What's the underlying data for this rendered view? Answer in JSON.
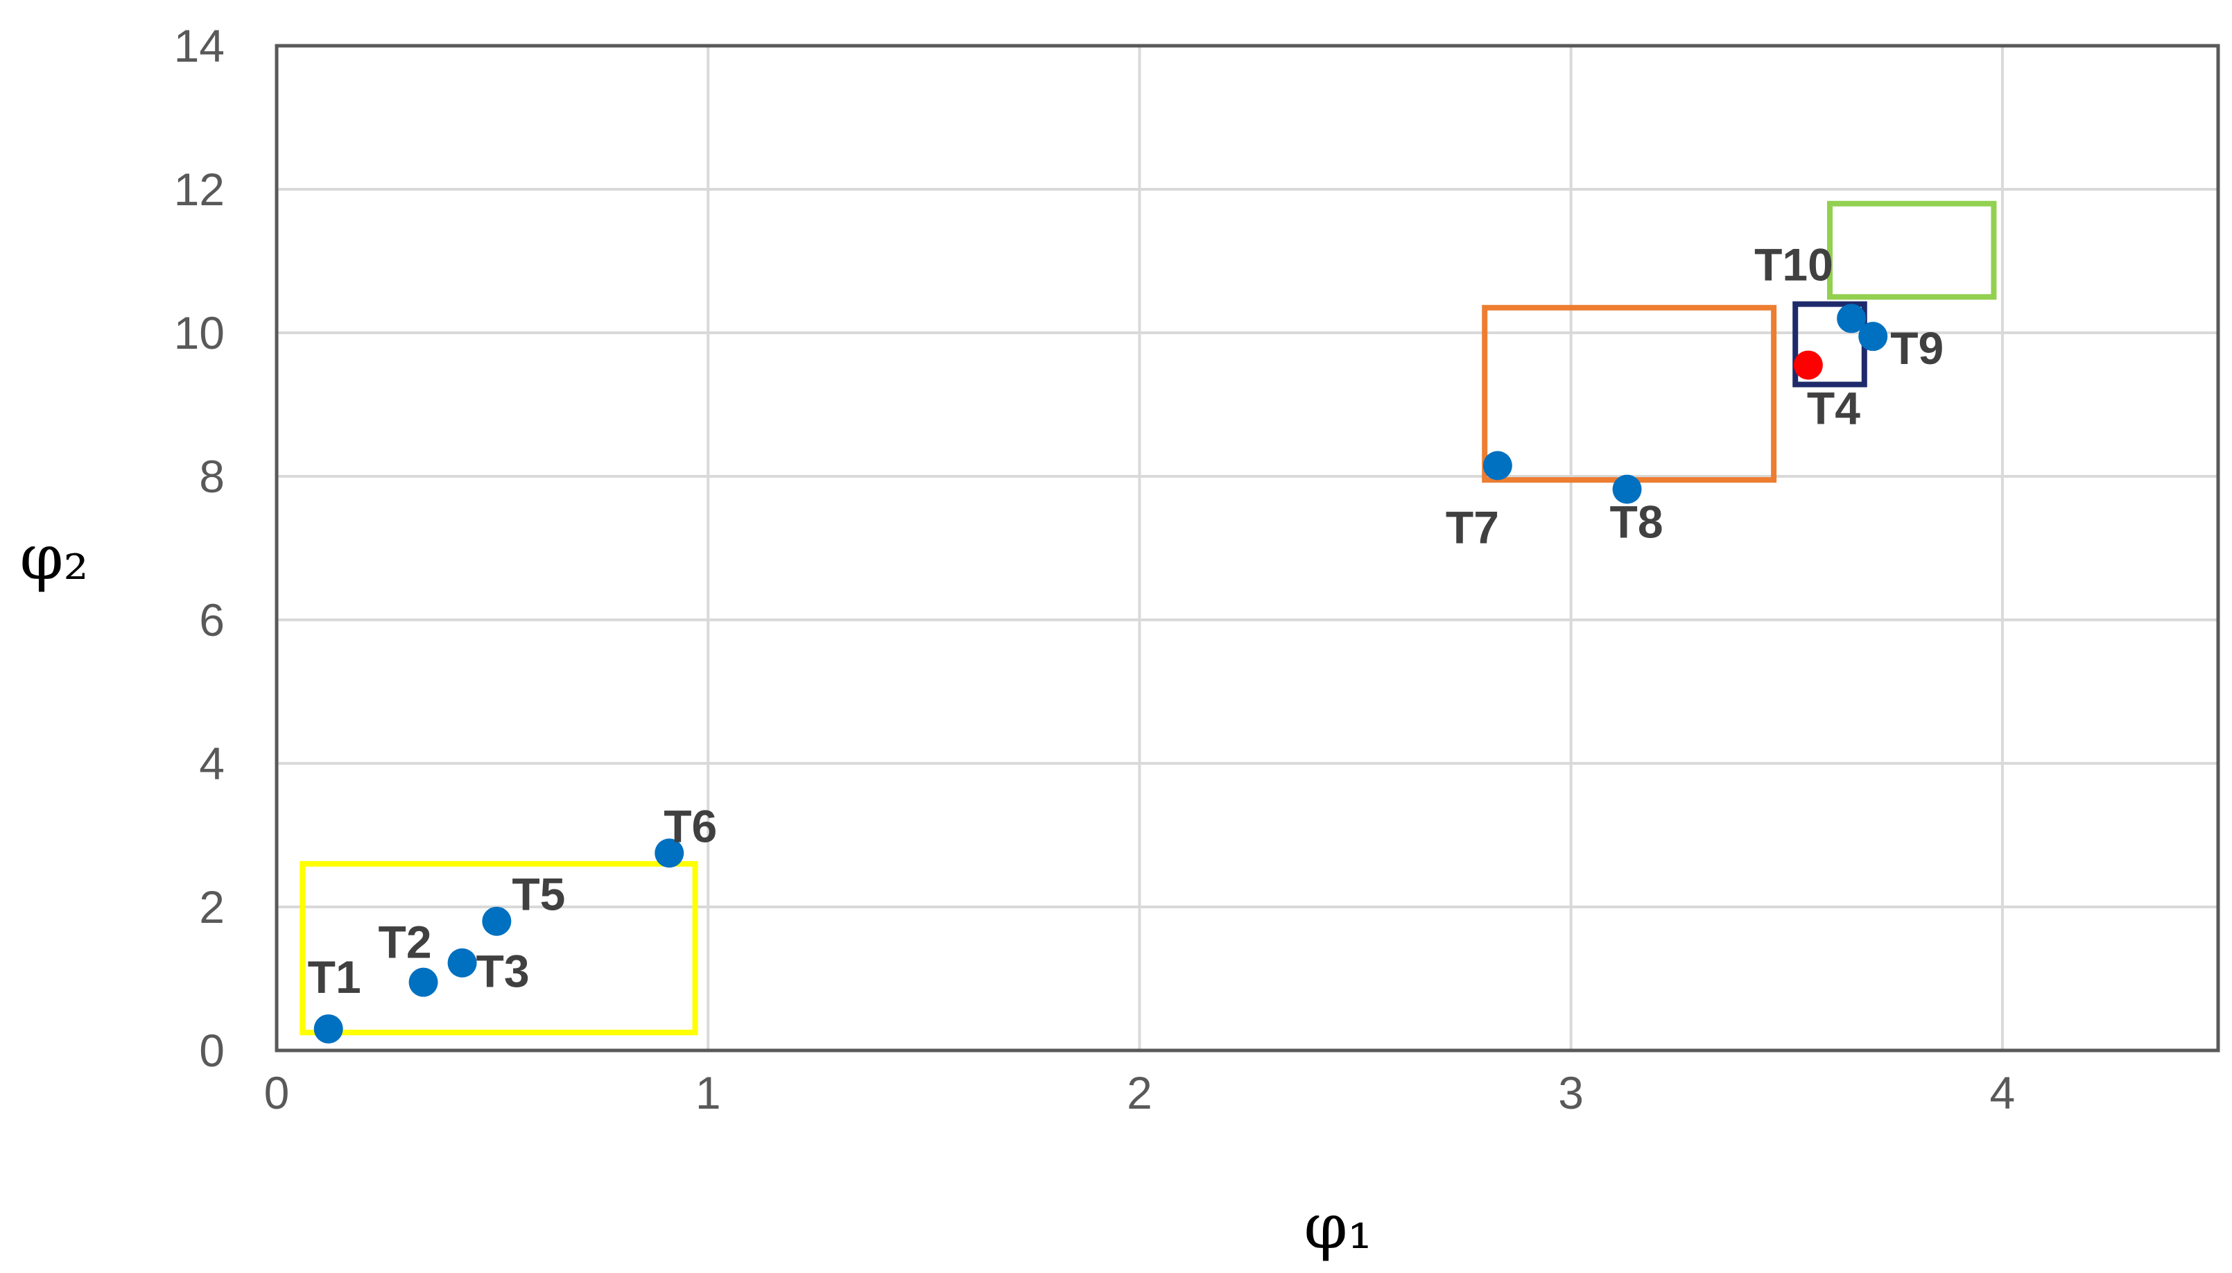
{
  "chart_data": {
    "type": "scatter",
    "title": "",
    "xlabel": "φ₁",
    "ylabel": "φ₂",
    "xlim": [
      0,
      4.5
    ],
    "ylim": [
      0,
      14
    ],
    "x_ticks": [
      0,
      1,
      2,
      3,
      4
    ],
    "y_ticks": [
      0,
      2,
      4,
      6,
      8,
      10,
      12,
      14
    ],
    "grid": true,
    "colors": {
      "points": "#0070c0",
      "highlight": "#ff0000",
      "grid": "#d9d9d9",
      "frame": "#595959"
    },
    "points": [
      {
        "label": "T1",
        "x": 0.12,
        "y": 0.3,
        "color": "#0070c0"
      },
      {
        "label": "T2",
        "x": 0.34,
        "y": 0.95,
        "color": "#0070c0"
      },
      {
        "label": "T3",
        "x": 0.43,
        "y": 1.22,
        "color": "#0070c0"
      },
      {
        "label": "T5",
        "x": 0.51,
        "y": 1.8,
        "color": "#0070c0"
      },
      {
        "label": "T6",
        "x": 0.91,
        "y": 2.75,
        "color": "#0070c0"
      },
      {
        "label": "T7",
        "x": 2.83,
        "y": 8.15,
        "color": "#0070c0"
      },
      {
        "label": "T8",
        "x": 3.13,
        "y": 7.82,
        "color": "#0070c0"
      },
      {
        "label": "T10",
        "x": 3.65,
        "y": 10.2,
        "color": "#0070c0"
      },
      {
        "label": "T9",
        "x": 3.7,
        "y": 9.95,
        "color": "#0070c0"
      },
      {
        "label": "T4",
        "x": 3.55,
        "y": 9.55,
        "color": "#ff0000"
      }
    ],
    "regions": [
      {
        "color": "#ffff00",
        "x": [
          0.06,
          0.97
        ],
        "y": [
          0.25,
          2.6
        ]
      },
      {
        "color": "#ed7d31",
        "x": [
          2.8,
          3.47
        ],
        "y": [
          7.95,
          10.35
        ]
      },
      {
        "color": "#1f2a6b",
        "x": [
          3.52,
          3.68
        ],
        "y": [
          9.28,
          10.4
        ]
      },
      {
        "color": "#92d050",
        "x": [
          3.6,
          3.98
        ],
        "y": [
          10.5,
          11.8
        ]
      }
    ]
  }
}
